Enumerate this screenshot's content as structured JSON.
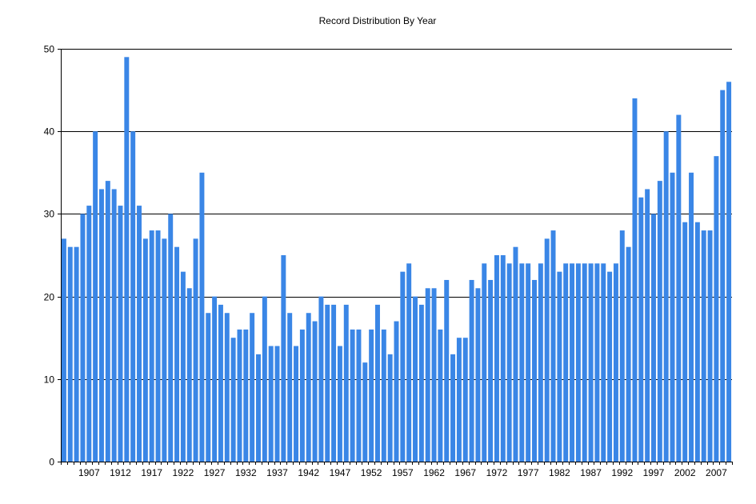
{
  "chart_data": {
    "type": "bar",
    "title": "Record Distribution By Year",
    "xlabel": "",
    "ylabel": "",
    "ylim": [
      0,
      50
    ],
    "yticks": [
      0,
      10,
      20,
      30,
      40,
      50
    ],
    "grid": true,
    "bar_color": "#3a86e6",
    "x_start": 1903,
    "x_tick_labels": [
      "1907",
      "1912",
      "1917",
      "1922",
      "1927",
      "1932",
      "1937",
      "1942",
      "1947",
      "1952",
      "1957",
      "1962",
      "1967",
      "1972",
      "1977",
      "1982",
      "1987",
      "1992",
      "1997",
      "2002",
      "2007"
    ],
    "categories": [
      1903,
      1904,
      1905,
      1906,
      1907,
      1908,
      1909,
      1910,
      1911,
      1912,
      1913,
      1914,
      1915,
      1916,
      1917,
      1918,
      1919,
      1920,
      1921,
      1922,
      1923,
      1924,
      1925,
      1926,
      1927,
      1928,
      1929,
      1930,
      1931,
      1932,
      1933,
      1934,
      1935,
      1936,
      1937,
      1938,
      1939,
      1940,
      1941,
      1942,
      1943,
      1944,
      1945,
      1946,
      1947,
      1948,
      1949,
      1950,
      1951,
      1952,
      1953,
      1954,
      1955,
      1956,
      1957,
      1958,
      1959,
      1960,
      1961,
      1962,
      1963,
      1964,
      1965,
      1966,
      1967,
      1968,
      1969,
      1970,
      1971,
      1972,
      1973,
      1974,
      1975,
      1976,
      1977,
      1978,
      1979,
      1980,
      1981,
      1982,
      1983,
      1984,
      1985,
      1986,
      1987,
      1988,
      1989,
      1990,
      1991,
      1992,
      1993,
      1994,
      1995,
      1996,
      1997,
      1998,
      1999,
      2000,
      2001,
      2002,
      2003,
      2004,
      2005,
      2006,
      2007,
      2008,
      2009
    ],
    "values": [
      27,
      26,
      26,
      30,
      31,
      40,
      33,
      34,
      33,
      31,
      49,
      40,
      31,
      27,
      28,
      28,
      27,
      30,
      26,
      23,
      21,
      27,
      35,
      18,
      20,
      19,
      18,
      15,
      16,
      16,
      18,
      13,
      20,
      14,
      14,
      25,
      18,
      14,
      16,
      18,
      17,
      20,
      19,
      19,
      14,
      19,
      16,
      16,
      12,
      16,
      19,
      16,
      13,
      17,
      23,
      24,
      20,
      19,
      21,
      21,
      16,
      22,
      13,
      15,
      15,
      22,
      21,
      24,
      22,
      25,
      25,
      24,
      26,
      24,
      24,
      22,
      24,
      27,
      28,
      23,
      24,
      24,
      24,
      24,
      24,
      24,
      24,
      23,
      24,
      28,
      26,
      44,
      32,
      33,
      30,
      34,
      40,
      35,
      42,
      29,
      35,
      29,
      28,
      28,
      37,
      45,
      46
    ]
  }
}
